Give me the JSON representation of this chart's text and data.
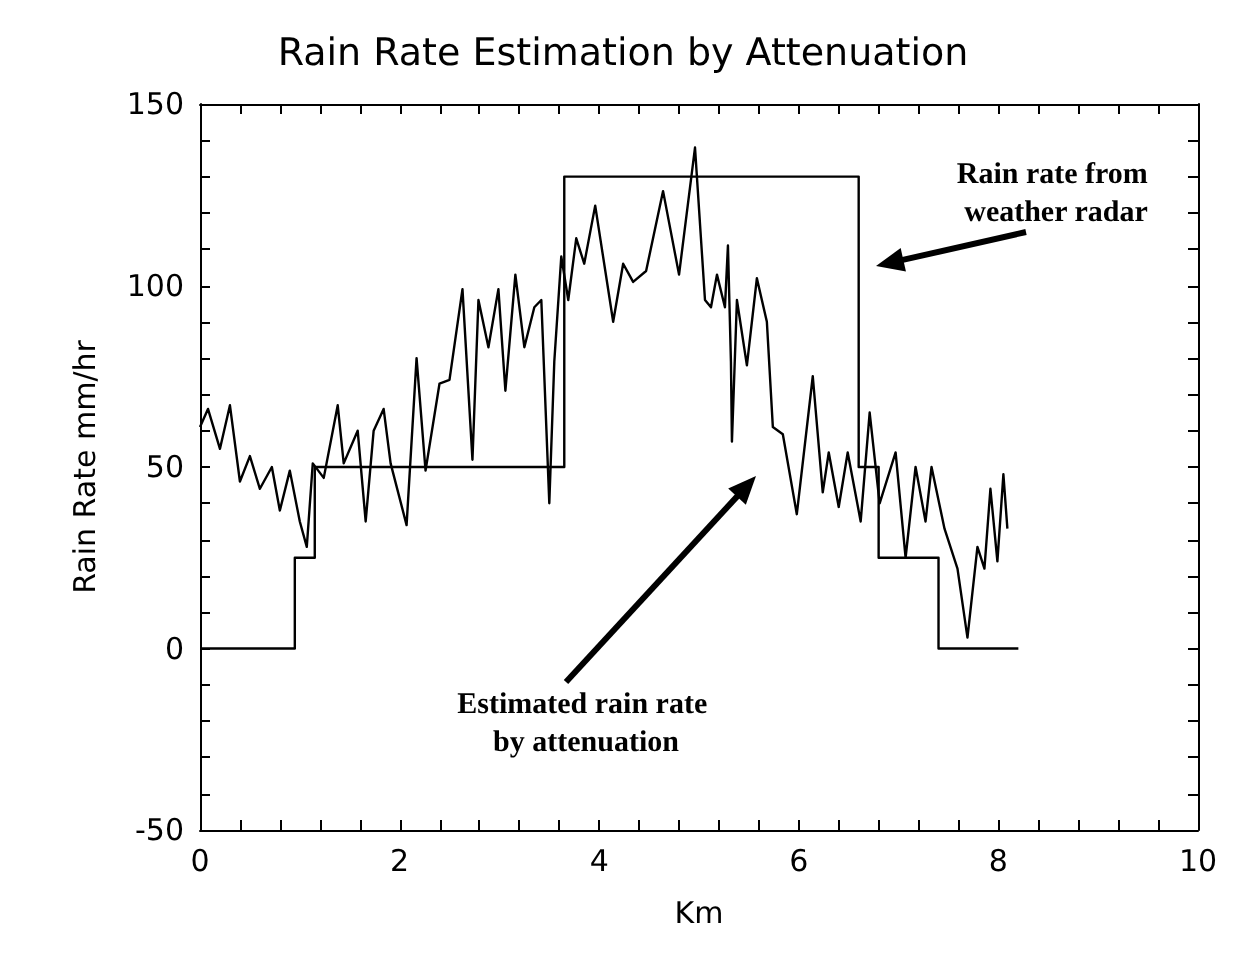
{
  "chart_data": {
    "type": "line",
    "title": "Rain Rate Estimation by Attenuation",
    "xlabel": "Km",
    "ylabel": "Rain Rate mm/hr",
    "xlim": [
      0,
      10
    ],
    "xticks": [
      0,
      2,
      4,
      6,
      8,
      10
    ],
    "ylim": [
      -50,
      150
    ],
    "yticks": [
      -50,
      0,
      50,
      100,
      150
    ],
    "marker": "none",
    "series": [
      {
        "type": "step",
        "color": "#000000",
        "x": [
          0,
          0.95,
          1.15,
          3.65,
          6.6,
          6.8,
          7.4,
          8.2
        ],
        "values": [
          0,
          25,
          50,
          130,
          50,
          25,
          0,
          0
        ]
      },
      {
        "color": "#000000",
        "x": [
          0,
          0.08,
          0.2,
          0.3,
          0.4,
          0.5,
          0.6,
          0.72,
          0.8,
          0.9,
          1.0,
          1.07,
          1.13,
          1.24,
          1.38,
          1.44,
          1.58,
          1.66,
          1.74,
          1.84,
          1.91,
          2.07,
          2.17,
          2.26,
          2.4,
          2.5,
          2.63,
          2.73,
          2.79,
          2.89,
          2.99,
          3.06,
          3.16,
          3.25,
          3.35,
          3.42,
          3.5,
          3.55,
          3.62,
          3.69,
          3.77,
          3.85,
          3.96,
          4.14,
          4.24,
          4.34,
          4.47,
          4.64,
          4.8,
          4.96,
          5.06,
          5.12,
          5.18,
          5.26,
          5.29,
          5.32,
          5.33,
          5.38,
          5.48,
          5.58,
          5.68,
          5.74,
          5.84,
          5.98,
          6.14,
          6.24,
          6.3,
          6.4,
          6.49,
          6.62,
          6.71,
          6.81,
          6.97,
          7.07,
          7.17,
          7.27,
          7.33,
          7.46,
          7.59,
          7.69,
          7.79,
          7.86,
          7.92,
          7.99,
          8.05,
          8.09
        ],
        "values": [
          61,
          66,
          55,
          67,
          46,
          53,
          44,
          50,
          38,
          49,
          35,
          28,
          51,
          47,
          67,
          51,
          60,
          35,
          60,
          66,
          51,
          34,
          80,
          49,
          73,
          74,
          99,
          52,
          96,
          83,
          99,
          71,
          103,
          83,
          94,
          96,
          40,
          79,
          108,
          96,
          113,
          106,
          122,
          90,
          106,
          101,
          104,
          126,
          103,
          138,
          96,
          94,
          103,
          94,
          111,
          79,
          57,
          96,
          78,
          102,
          90,
          61,
          59,
          37,
          75,
          43,
          54,
          39,
          54,
          35,
          65,
          40,
          54,
          25,
          50,
          35,
          50,
          33,
          22,
          3,
          28,
          22,
          44,
          24,
          48,
          33
        ]
      }
    ],
    "annotations": [
      "Rain rate from weather radar",
      "Estimated rain rate by attenuation"
    ]
  }
}
